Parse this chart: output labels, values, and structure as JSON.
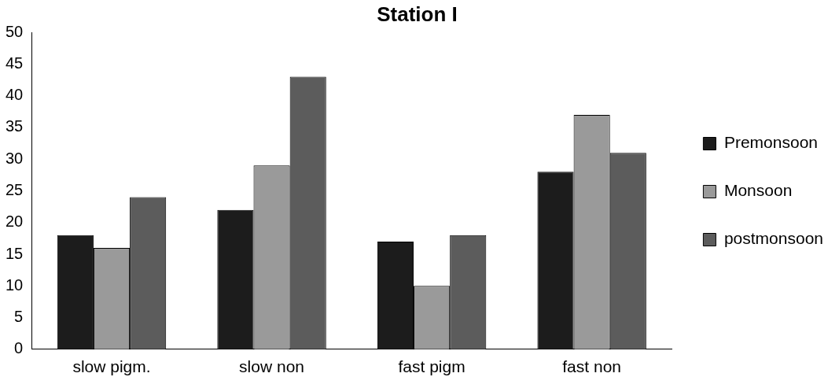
{
  "chart_data": {
    "type": "bar",
    "title": "Station I",
    "categories": [
      "slow pigm.",
      "slow non",
      "fast pigm",
      "fast non"
    ],
    "series": [
      {
        "name": "Premonsoon",
        "color": "#1c1c1c",
        "values": [
          18,
          22,
          17,
          28
        ]
      },
      {
        "name": "Monsoon",
        "color": "#9a9a9a",
        "values": [
          16,
          29,
          10,
          37
        ]
      },
      {
        "name": "postmonsoon",
        "color": "#5c5c5c",
        "values": [
          24,
          43,
          18,
          31
        ]
      }
    ],
    "ylim": [
      0,
      50
    ],
    "yticks": [
      0,
      5,
      10,
      15,
      20,
      25,
      30,
      35,
      40,
      45,
      50
    ],
    "grid": false,
    "legend": "right"
  }
}
